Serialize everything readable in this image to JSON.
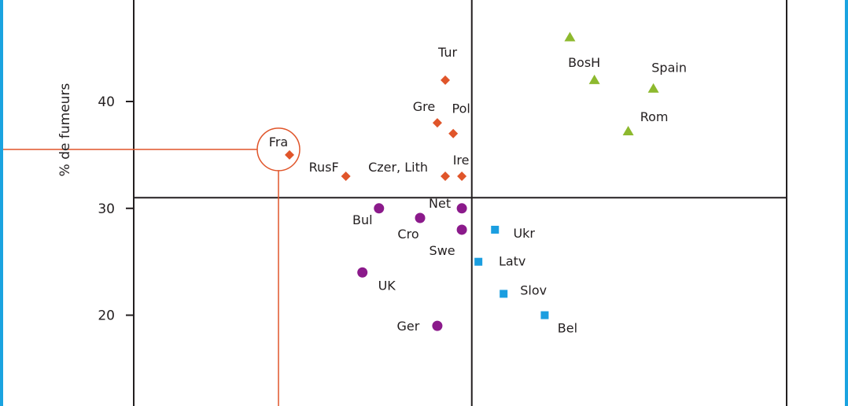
{
  "chart_data": {
    "type": "scatter",
    "ylabel": "% de fumeurs",
    "y_ticks": [
      20,
      30,
      40
    ],
    "y_view": [
      11.5,
      49.5
    ],
    "x_view": [
      -20,
      965
    ],
    "quadrant_dividers": {
      "x": 490,
      "y": 31
    },
    "colors": {
      "orange": "#e0552a",
      "green": "#8db92e",
      "purple": "#8b1a8b",
      "blue": "#1a9ee0",
      "axis": "#231f20",
      "highlight": "#e0552a"
    },
    "highlight": {
      "label": "Fra",
      "x": 215,
      "y": 35
    },
    "series": [
      {
        "marker": "diamond",
        "color": "orange",
        "points": [
          {
            "label": "Tur",
            "x": 450,
            "y": 42
          },
          {
            "label": "Gre",
            "x": 438,
            "y": 38
          },
          {
            "label": "Pol",
            "x": 462,
            "y": 37
          },
          {
            "label": "Fra",
            "x": 215,
            "y": 35
          },
          {
            "label": "RusF",
            "x": 300,
            "y": 33
          },
          {
            "label": "Czer, Lith",
            "x": 450,
            "y": 33
          },
          {
            "label": "Ire",
            "x": 475,
            "y": 33
          }
        ]
      },
      {
        "marker": "triangle",
        "color": "green",
        "points": [
          {
            "label": "",
            "x": 638,
            "y": 46
          },
          {
            "label": "BosH",
            "x": 675,
            "y": 42
          },
          {
            "label": "Spain",
            "x": 764,
            "y": 41.2
          },
          {
            "label": "Rom",
            "x": 726,
            "y": 37.2
          }
        ]
      },
      {
        "marker": "circle",
        "color": "purple",
        "points": [
          {
            "label": "Net",
            "x": 475,
            "y": 30
          },
          {
            "label": "Bul",
            "x": 350,
            "y": 30
          },
          {
            "label": "Cro",
            "x": 412,
            "y": 29.1
          },
          {
            "label": "Swe",
            "x": 475,
            "y": 28
          },
          {
            "label": "UK",
            "x": 325,
            "y": 24
          },
          {
            "label": "Ger",
            "x": 438,
            "y": 19
          }
        ]
      },
      {
        "marker": "square",
        "color": "blue",
        "points": [
          {
            "label": "Ukr",
            "x": 525,
            "y": 28
          },
          {
            "label": "Latv",
            "x": 500,
            "y": 25
          },
          {
            "label": "Slov",
            "x": 538,
            "y": 22
          },
          {
            "label": "Bel",
            "x": 600,
            "y": 20
          }
        ]
      }
    ]
  }
}
